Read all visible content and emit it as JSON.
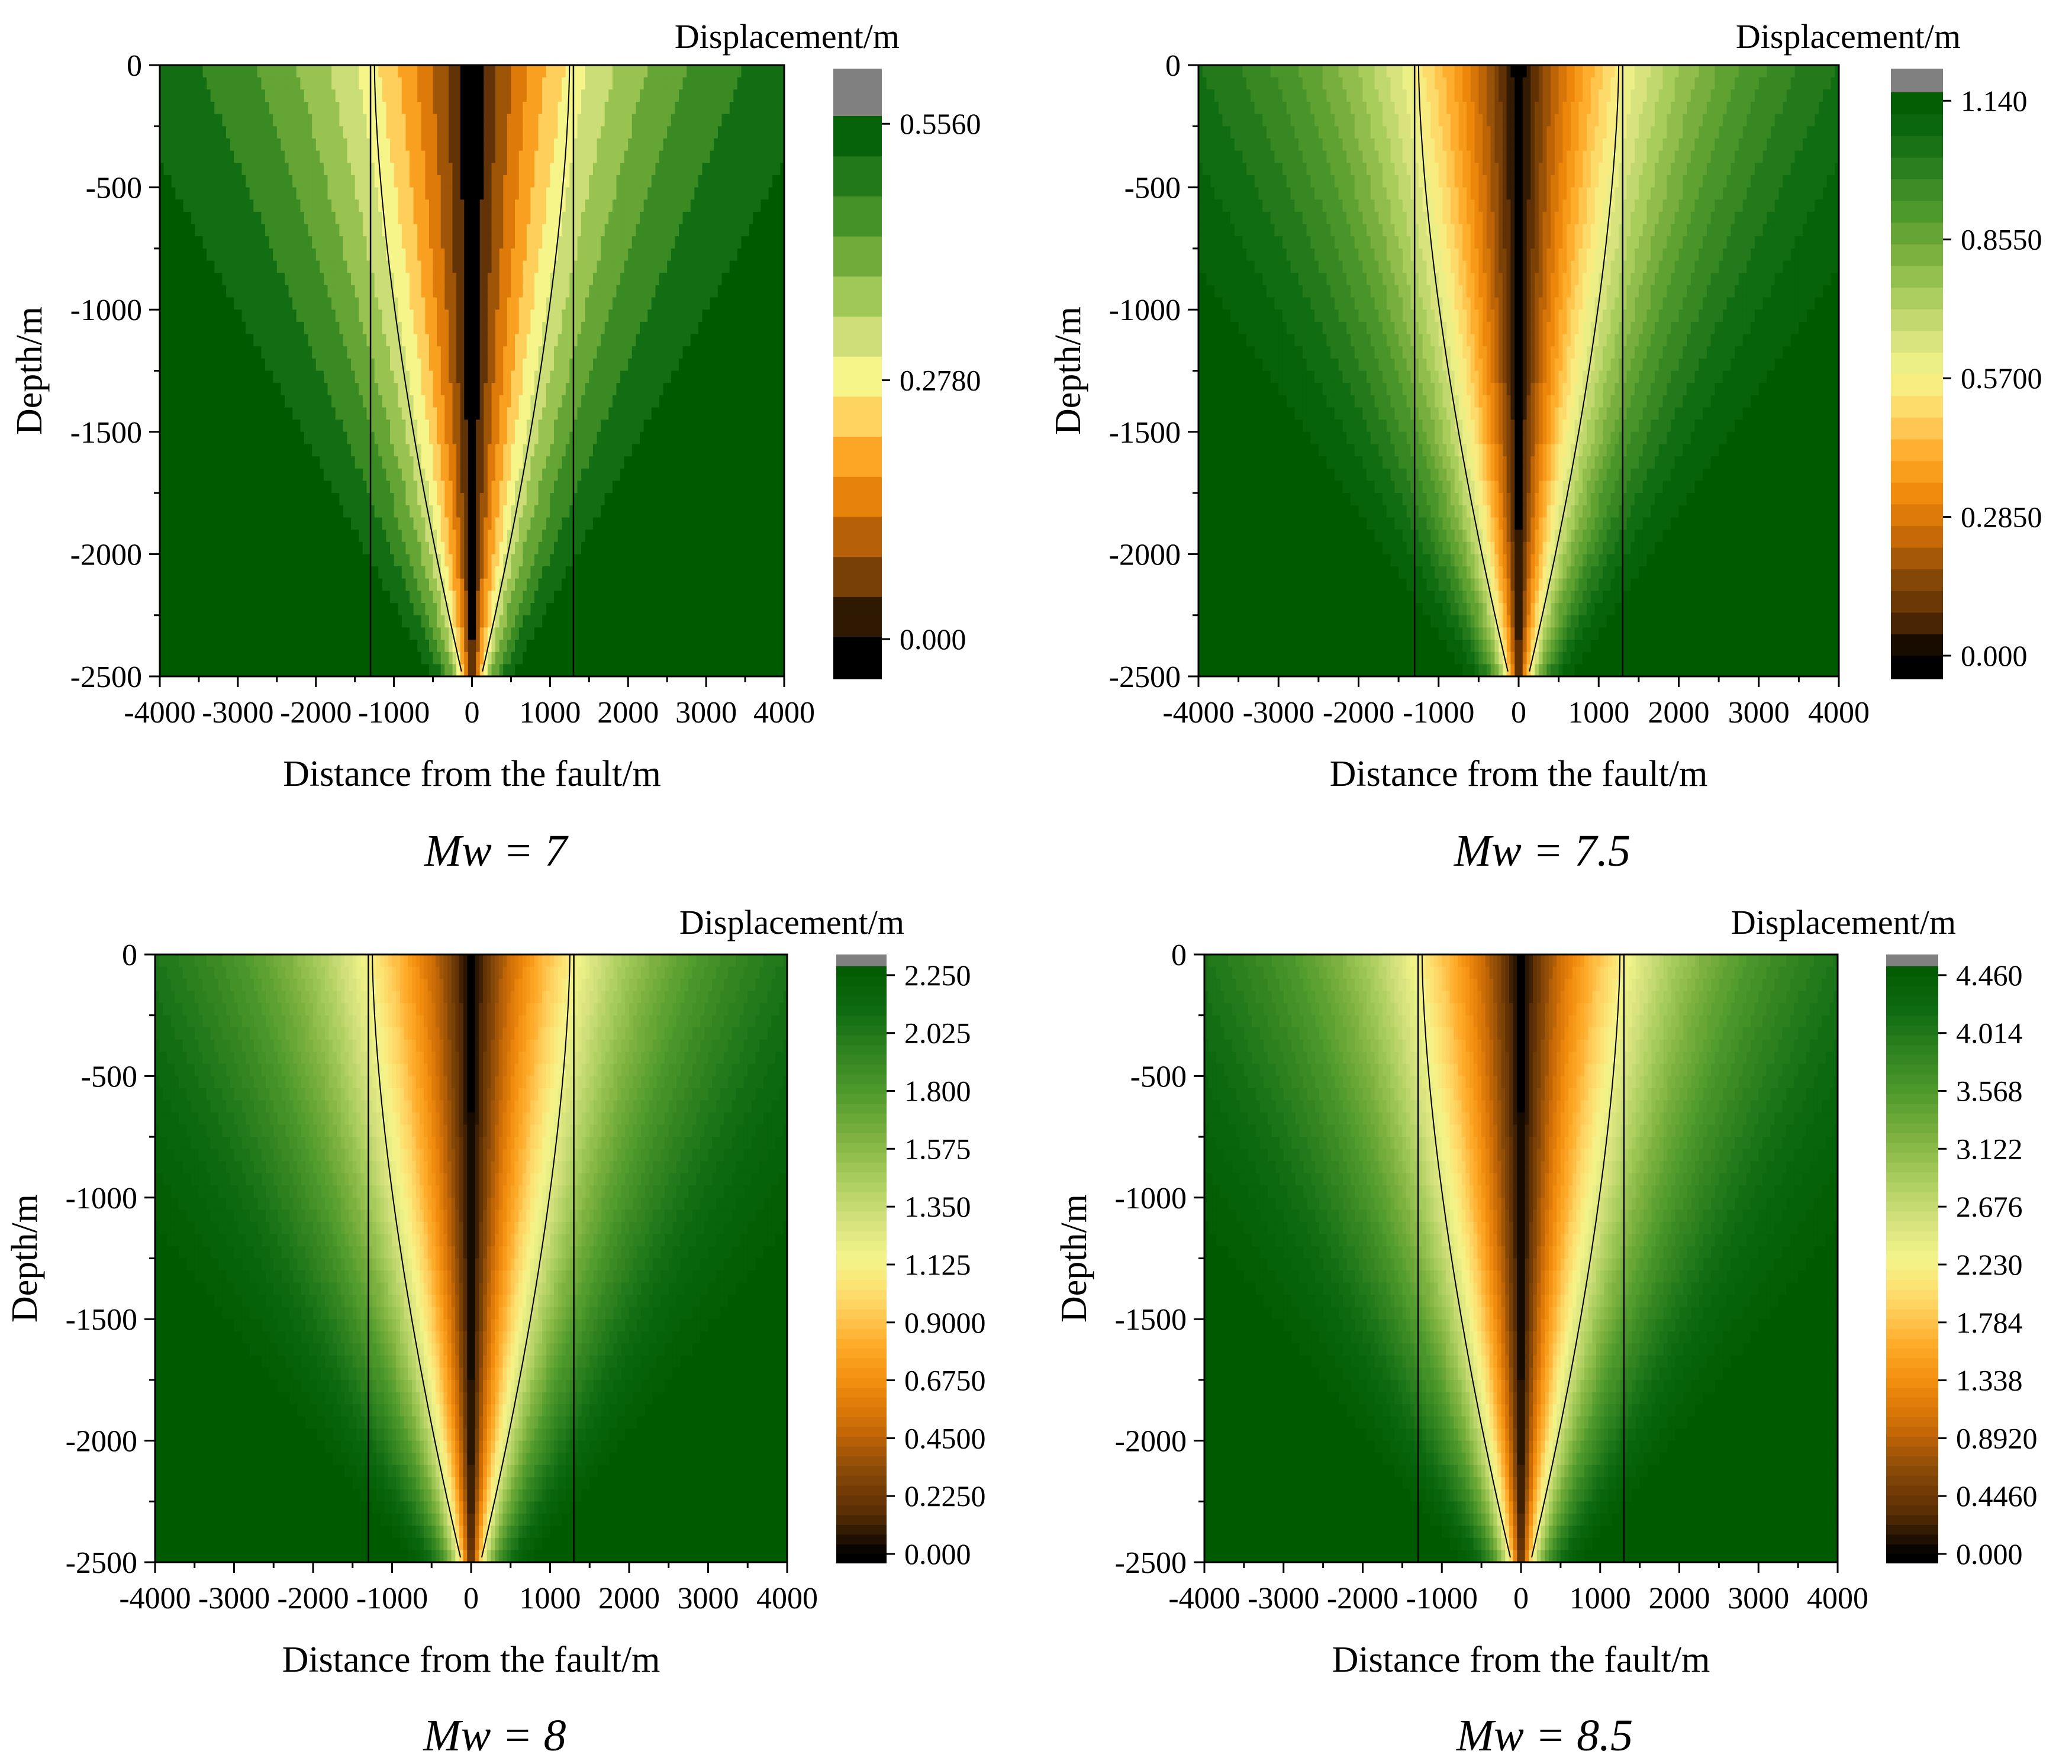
{
  "figure": {
    "panels": [
      {
        "caption": "Mw = 7",
        "colorbar_title": "Displacement/m",
        "colorbar_labels": [
          "0.5560",
          "0.2780",
          "0.000"
        ],
        "color_levels": 13
      },
      {
        "caption": "Mw = 7.5",
        "colorbar_title": "Displacement/m",
        "colorbar_labels": [
          "1.140",
          "0.8550",
          "0.5700",
          "0.2850",
          "0.000"
        ],
        "color_levels": 26
      },
      {
        "caption": "Mw = 8",
        "colorbar_title": "Displacement/m",
        "colorbar_labels": [
          "2.250",
          "2.025",
          "1.800",
          "1.575",
          "1.350",
          "1.125",
          "0.9000",
          "0.6750",
          "0.4500",
          "0.2250",
          "0.000"
        ],
        "color_levels": 60
      },
      {
        "caption": "Mw = 8.5",
        "colorbar_title": "Displacement/m",
        "colorbar_labels": [
          "4.460",
          "4.014",
          "3.568",
          "3.122",
          "2.676",
          "2.230",
          "1.784",
          "1.338",
          "0.8920",
          "0.4460",
          "0.000"
        ],
        "color_levels": 60
      }
    ]
  },
  "chart_data": [
    {
      "type": "heatmap",
      "title": "Mw = 7",
      "xlabel": "Distance from the fault/m",
      "ylabel": "Depth/m",
      "xlim": [
        -4000,
        4000
      ],
      "ylim": [
        -2500,
        0
      ],
      "xticks": [
        -4000,
        -3000,
        -2000,
        -1000,
        0,
        1000,
        2000,
        3000,
        4000
      ],
      "yticks": [
        0,
        -500,
        -1000,
        -1500,
        -2000,
        -2500
      ],
      "colorbar": {
        "title": "Displacement/m",
        "min": 0,
        "max": 0.556,
        "ticks": [
          0.556,
          0.278,
          0.0
        ]
      },
      "boundary_lines_x": [
        -1300,
        1300
      ],
      "max_displacement": 0.556
    },
    {
      "type": "heatmap",
      "title": "Mw = 7.5",
      "xlabel": "Distance from the fault/m",
      "ylabel": "Depth/m",
      "xlim": [
        -4000,
        4000
      ],
      "ylim": [
        -2500,
        0
      ],
      "xticks": [
        -4000,
        -3000,
        -2000,
        -1000,
        0,
        1000,
        2000,
        3000,
        4000
      ],
      "yticks": [
        0,
        -500,
        -1000,
        -1500,
        -2000,
        -2500
      ],
      "colorbar": {
        "title": "Displacement/m",
        "min": 0,
        "max": 1.14,
        "ticks": [
          1.14,
          0.855,
          0.57,
          0.285,
          0.0
        ]
      },
      "boundary_lines_x": [
        -1300,
        1300
      ],
      "max_displacement": 1.14
    },
    {
      "type": "heatmap",
      "title": "Mw = 8",
      "xlabel": "Distance from the fault/m",
      "ylabel": "Depth/m",
      "xlim": [
        -4000,
        4000
      ],
      "ylim": [
        -2500,
        0
      ],
      "xticks": [
        -4000,
        -3000,
        -2000,
        -1000,
        0,
        1000,
        2000,
        3000,
        4000
      ],
      "yticks": [
        0,
        -500,
        -1000,
        -1500,
        -2000,
        -2500
      ],
      "colorbar": {
        "title": "Displacement/m",
        "min": 0,
        "max": 2.25,
        "ticks": [
          2.25,
          2.025,
          1.8,
          1.575,
          1.35,
          1.125,
          0.9,
          0.675,
          0.45,
          0.225,
          0.0
        ]
      },
      "boundary_lines_x": [
        -1300,
        1300
      ],
      "max_displacement": 2.25
    },
    {
      "type": "heatmap",
      "title": "Mw = 8.5",
      "xlabel": "Distance from the fault/m",
      "ylabel": "Depth/m",
      "xlim": [
        -4000,
        4000
      ],
      "ylim": [
        -2500,
        0
      ],
      "xticks": [
        -4000,
        -3000,
        -2000,
        -1000,
        0,
        1000,
        2000,
        3000,
        4000
      ],
      "yticks": [
        0,
        -500,
        -1000,
        -1500,
        -2000,
        -2500
      ],
      "colorbar": {
        "title": "Displacement/m",
        "min": 0,
        "max": 4.46,
        "ticks": [
          4.46,
          4.014,
          3.568,
          3.122,
          2.676,
          2.23,
          1.784,
          1.338,
          0.892,
          0.446,
          0.0
        ]
      },
      "boundary_lines_x": [
        -1300,
        1300
      ],
      "max_displacement": 4.46
    }
  ],
  "colors": {
    "colormap": [
      "#000000",
      "#5a2e05",
      "#8a4a08",
      "#c96a06",
      "#f08a0c",
      "#ffab2a",
      "#ffd665",
      "#f5f58a",
      "#d3e07c",
      "#a6cc5a",
      "#7bb03e",
      "#4f9a2c",
      "#2f8220",
      "#0d6a10",
      "#005a00"
    ],
    "over": "#808080",
    "under": "#000000",
    "line": "#000000",
    "background": "#ffffff"
  }
}
